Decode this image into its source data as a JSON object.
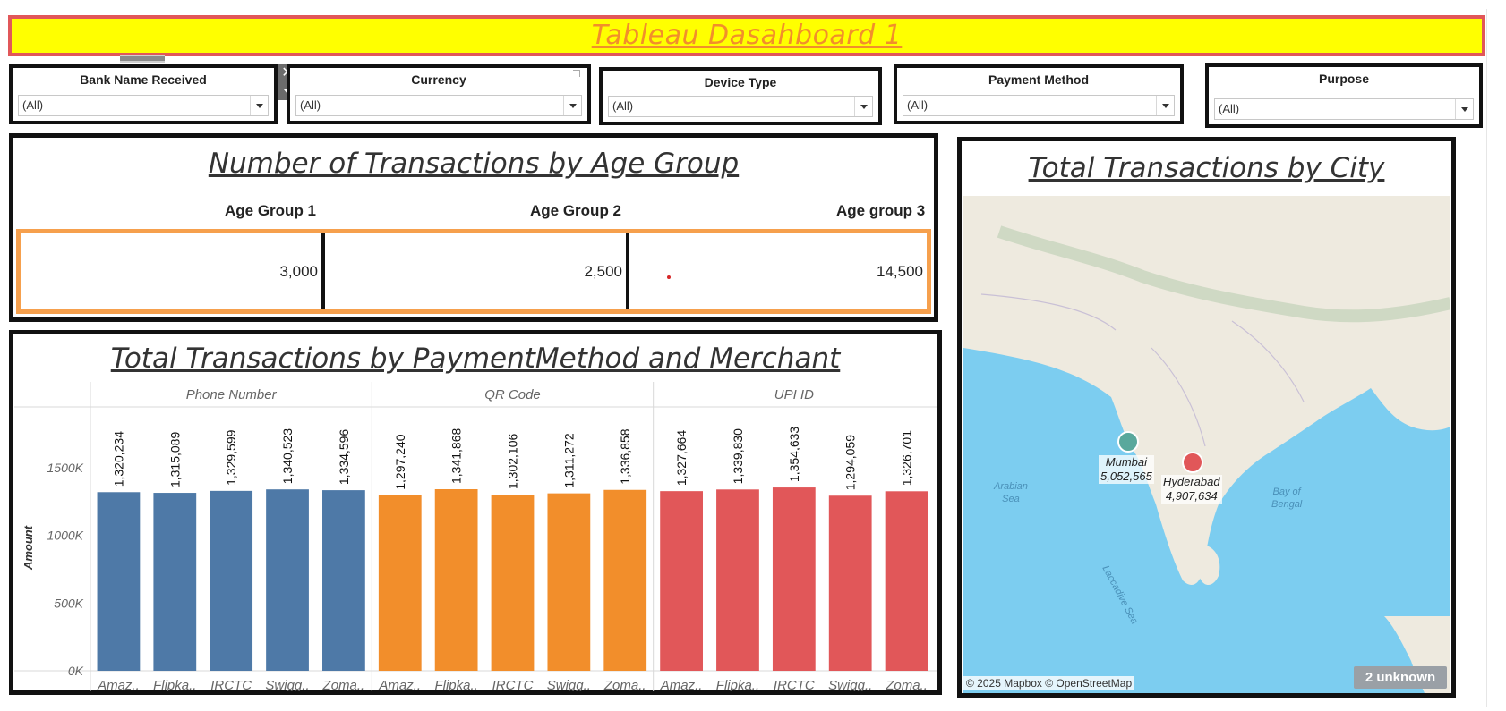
{
  "dashboard": {
    "title": "Tableau Dasahboard 1"
  },
  "filters": [
    {
      "label": "Bank Name Received",
      "value": "(All)"
    },
    {
      "label": "Currency",
      "value": "(All)"
    },
    {
      "label": "Device Type",
      "value": "(All)"
    },
    {
      "label": "Payment Method",
      "value": "(All)"
    },
    {
      "label": "Purpose",
      "value": "(All)"
    }
  ],
  "filter_controls": {
    "close_glyph": "✕"
  },
  "age_panel": {
    "title": "Number of Transactions by Age Group",
    "headers": [
      "Age Group 1",
      "Age Group 2",
      "Age group 3"
    ],
    "values": [
      "3,000",
      "2,500",
      "14,500"
    ]
  },
  "map_panel": {
    "title": "Total Transactions by City",
    "cities": [
      {
        "name": "Mumbai",
        "value": "5,052,565",
        "color": "#59a89c"
      },
      {
        "name": "Hyderabad",
        "value": "4,907,634",
        "color": "#e15759"
      }
    ],
    "seas": [
      "Arabian\nSea",
      "Bay of\nBengal",
      "Laccadive Sea"
    ],
    "attribution": "© 2025 Mapbox © OpenStreetMap",
    "unknown_badge": "2 unknown"
  },
  "chart_data": {
    "type": "bar",
    "title": "Total Transactions by PaymentMethod and Merchant",
    "ylabel": "Amount",
    "ylim": [
      0,
      1950000
    ],
    "yticks": [
      0,
      500000,
      1000000,
      1500000
    ],
    "ytick_labels": [
      "0K",
      "500K",
      "1000K",
      "1500K"
    ],
    "grid": false,
    "groups": [
      {
        "name": "Phone Number",
        "color": "#4e79a7",
        "categories": [
          "Amaz..",
          "Flipka..",
          "IRCTC",
          "Swigg..",
          "Zoma.."
        ],
        "values": [
          1320234,
          1315089,
          1329599,
          1340523,
          1334596
        ],
        "labels": [
          "1,320,234",
          "1,315,089",
          "1,329,599",
          "1,340,523",
          "1,334,596"
        ]
      },
      {
        "name": "QR Code",
        "color": "#f28e2b",
        "categories": [
          "Amaz..",
          "Flipka..",
          "IRCTC",
          "Swigg..",
          "Zoma.."
        ],
        "values": [
          1297240,
          1341868,
          1302106,
          1311272,
          1336858
        ],
        "labels": [
          "1,297,240",
          "1,341,868",
          "1,302,106",
          "1,311,272",
          "1,336,858"
        ]
      },
      {
        "name": "UPI ID",
        "color": "#e15759",
        "categories": [
          "Amaz..",
          "Flipka..",
          "IRCTC",
          "Swigg..",
          "Zoma.."
        ],
        "values": [
          1327664,
          1339830,
          1354633,
          1294059,
          1326701
        ],
        "labels": [
          "1,327,664",
          "1,339,830",
          "1,354,633",
          "1,294,059",
          "1,326,701"
        ]
      }
    ]
  }
}
